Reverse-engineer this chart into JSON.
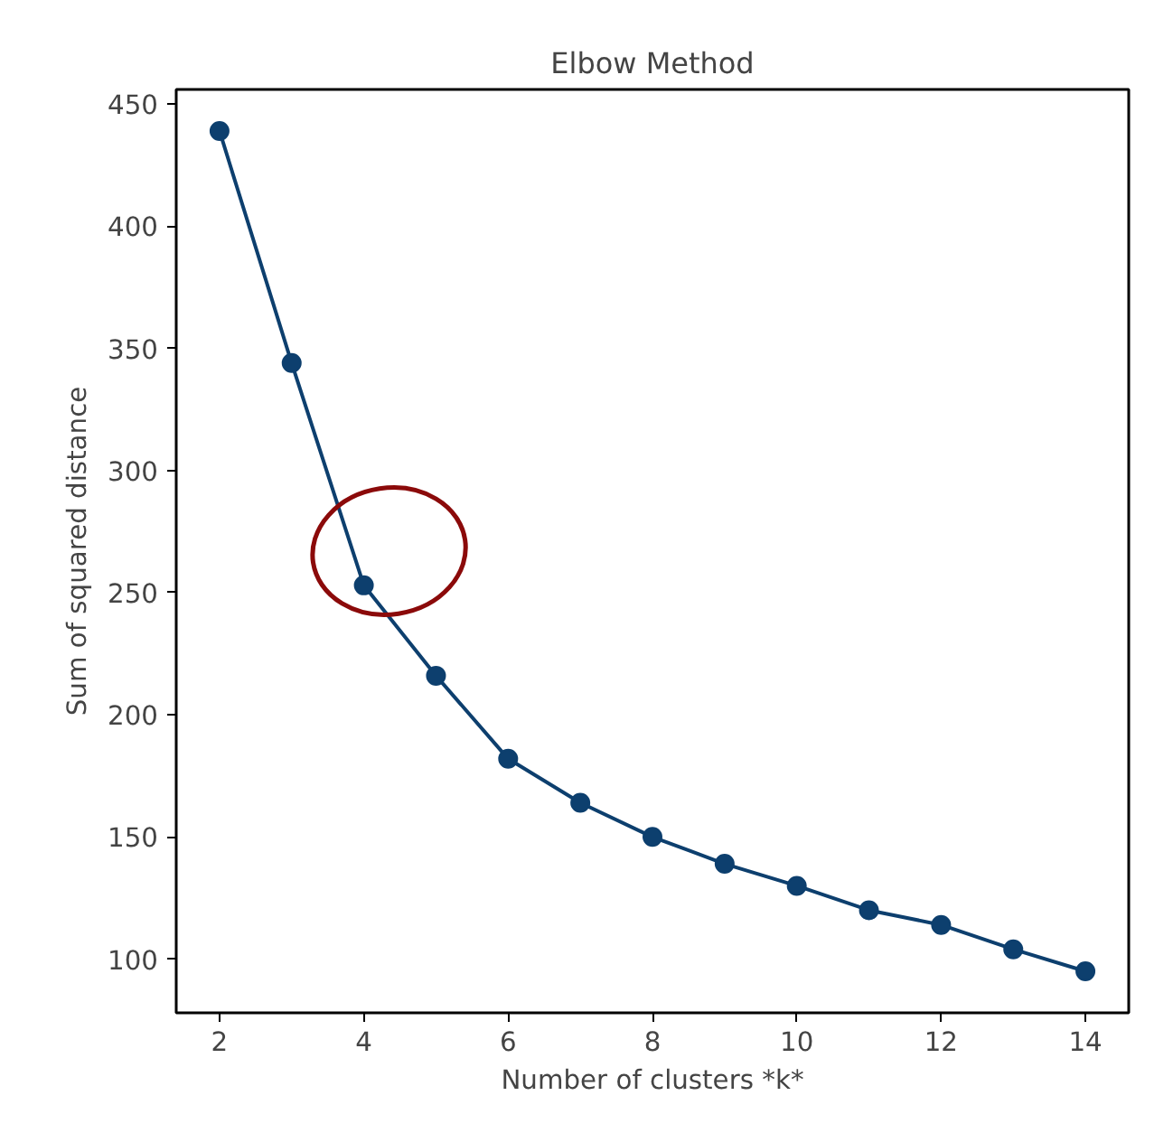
{
  "chart_data": {
    "type": "line",
    "title": "Elbow Method",
    "xlabel": "Number of clusters *k*",
    "ylabel": "Sum of squared distance",
    "x": [
      2,
      3,
      4,
      5,
      6,
      7,
      8,
      9,
      10,
      11,
      12,
      13,
      14
    ],
    "series": [
      {
        "color": "#0d3f6e",
        "values": [
          439,
          344,
          253,
          216,
          182,
          164,
          150,
          139,
          130,
          120,
          114,
          104,
          95
        ]
      }
    ],
    "xlim": [
      1.4,
      14.6
    ],
    "ylim": [
      78,
      456
    ],
    "xticks": [
      2,
      4,
      6,
      8,
      10,
      12,
      14
    ],
    "yticks": [
      100,
      150,
      200,
      250,
      300,
      350,
      400,
      450
    ],
    "marker": "circle",
    "line_style": "solid",
    "grid": false
  }
}
